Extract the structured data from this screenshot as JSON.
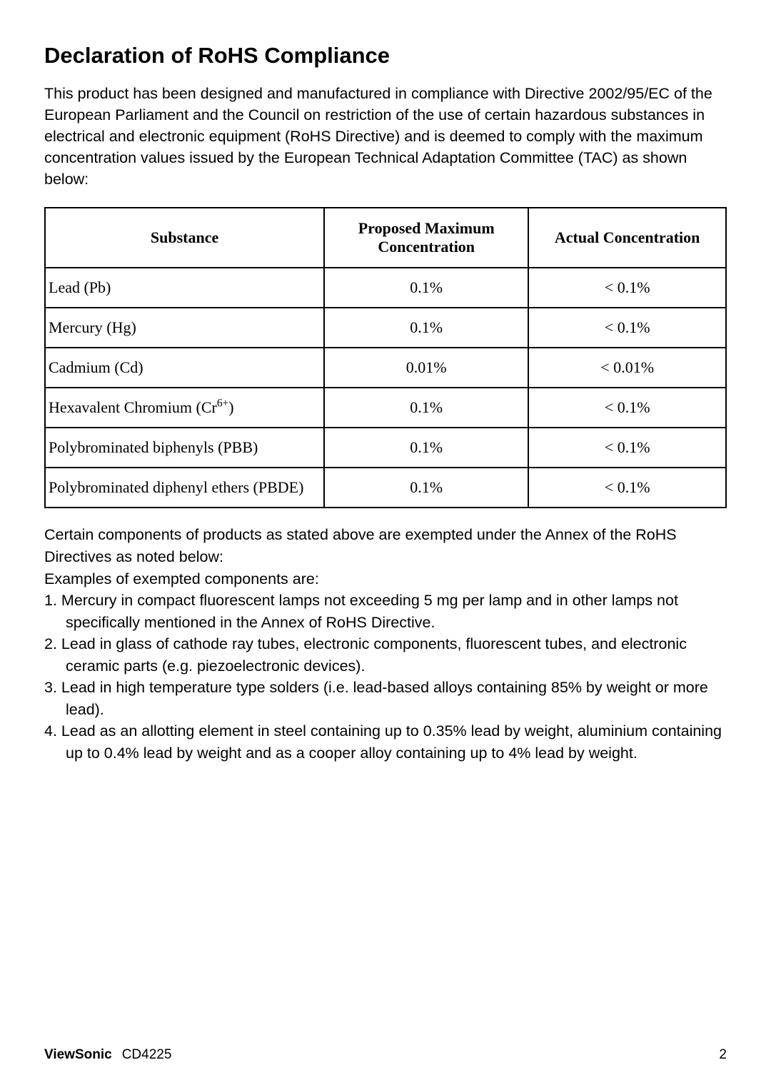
{
  "title": "Declaration of RoHS Compliance",
  "intro": "This product has been designed and manufactured in compliance with Directive 2002/95/EC of the European Parliament and the Council on restriction of the use of certain hazardous substances in electrical and electronic equipment (RoHS Directive) and is deemed to comply with the maximum concentration values issued by the European Technical Adaptation Committee (TAC) as shown below:",
  "headers": {
    "col1": "Substance",
    "col2_line1": "Proposed Maximum",
    "col2_line2": "Concentration",
    "col3": "Actual Concentration"
  },
  "rows": [
    {
      "substance": "Lead (Pb)",
      "proposed": "0.1%",
      "actual": "< 0.1%"
    },
    {
      "substance": "Mercury (Hg)",
      "proposed": "0.1%",
      "actual": "< 0.1%"
    },
    {
      "substance": "Cadmium (Cd)",
      "proposed": "0.01%",
      "actual": "< 0.01%"
    },
    {
      "substance_pre": "Hexavalent Chromium (Cr",
      "substance_sup": "6+",
      "substance_post": ")",
      "proposed": "0.1%",
      "actual": "< 0.1%"
    },
    {
      "substance": "Polybrominated biphenyls (PBB)",
      "proposed": "0.1%",
      "actual": "< 0.1%"
    },
    {
      "substance": "Polybrominated diphenyl ethers (PBDE)",
      "proposed": "0.1%",
      "actual": "< 0.1%"
    }
  ],
  "post1": "Certain components of products as stated above are exempted under the Annex of the RoHS Directives as noted below:",
  "post2": "Examples of exempted components are:",
  "items": [
    "1. Mercury in compact fluorescent lamps not exceeding 5 mg per lamp and in other lamps not specifically mentioned in the Annex of RoHS Directive.",
    "2. Lead in glass of cathode ray tubes, electronic components, fluorescent tubes, and electronic ceramic parts (e.g. piezoelectronic devices).",
    "3. Lead in high temperature type solders (i.e. lead-based alloys containing 85% by weight or more lead).",
    "4. Lead as an allotting element in steel containing up to 0.35% lead by weight, aluminium containing up to 0.4% lead by weight and as a cooper alloy containing up to 4% lead by weight."
  ],
  "footer_brand": "ViewSonic",
  "footer_model": "CD4225",
  "footer_page": "2"
}
